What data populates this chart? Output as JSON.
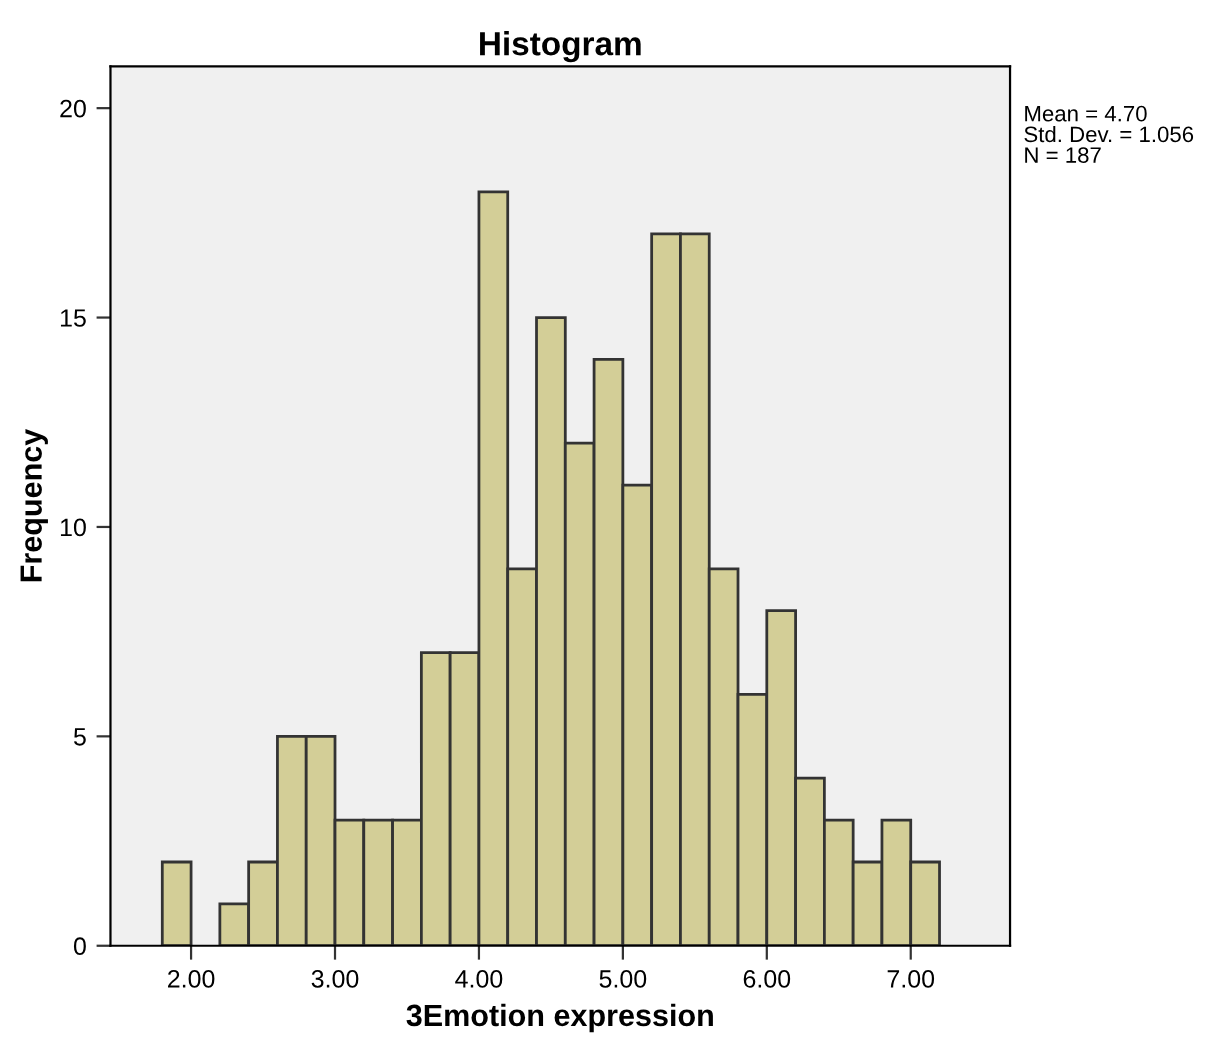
{
  "chart_data": {
    "type": "histogram",
    "title": "Histogram",
    "xlabel": "3Emotion expression",
    "ylabel": "Frequency",
    "bins": [
      1.8,
      2.0,
      2.2,
      2.4,
      2.6,
      2.8,
      3.0,
      3.2,
      3.4,
      3.6,
      3.8,
      4.0,
      4.2,
      4.4,
      4.6,
      4.8,
      5.0,
      5.2,
      5.4,
      5.6,
      5.8,
      6.0,
      6.2,
      6.4,
      6.6,
      6.8,
      7.0,
      7.2
    ],
    "values": [
      2,
      0,
      1,
      2,
      5,
      5,
      3,
      3,
      3,
      7,
      7,
      18,
      9,
      15,
      12,
      14,
      11,
      17,
      17,
      9,
      6,
      8,
      4,
      3,
      2,
      3,
      2
    ],
    "color": "#d3ce97",
    "xlim": [
      1.44,
      7.69
    ],
    "ylim": [
      0,
      21
    ],
    "xticks": [
      {
        "value": 2,
        "label": "2.00"
      },
      {
        "value": 3,
        "label": "3.00"
      },
      {
        "value": 4,
        "label": "4.00"
      },
      {
        "value": 5,
        "label": "5.00"
      },
      {
        "value": 6,
        "label": "6.00"
      },
      {
        "value": 7,
        "label": "7.00"
      }
    ],
    "yticks": [
      0,
      5,
      10,
      15,
      20
    ],
    "grid": false,
    "annotations": [
      "Mean = 4.70\nStd. Dev. = 1.056\nN = 187"
    ]
  }
}
